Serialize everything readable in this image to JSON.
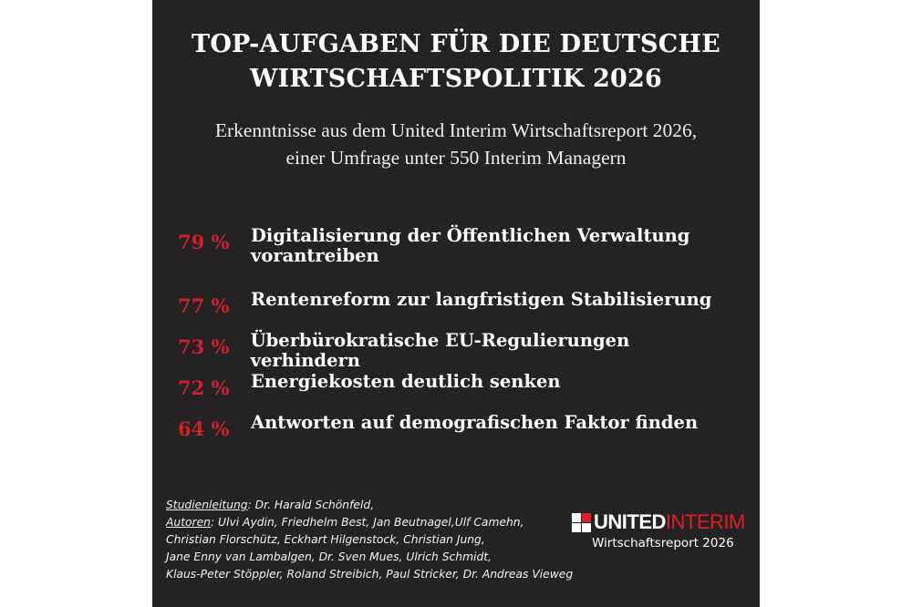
{
  "title": {
    "line1": "TOP-AUFGABEN FÜR DIE DEUTSCHE",
    "line2": "WIRTSCHAFTSPOLITIK 2026"
  },
  "subtitle": {
    "line1": "Erkenntnisse aus dem United Interim Wirtschaftsreport 2026,",
    "line2": "einer Umfrage unter 550 Interim Managern"
  },
  "items": [
    {
      "percent": "79 %",
      "label_line1": "Digitalisierung der Öffentlichen Verwaltung",
      "label_line2": "vorantreiben"
    },
    {
      "percent": "77 %",
      "label_line1": "Rentenreform zur langfristigen Stabilisierung"
    },
    {
      "percent": "73 %",
      "label_line1": "Überbürokratische EU-Regulierungen verhindern"
    },
    {
      "percent": "72 %",
      "label_line1": "Energiekosten deutlich senken"
    },
    {
      "percent": "64 %",
      "label_line1": "Antworten auf demografischen Faktor finden"
    }
  ],
  "credits": {
    "lead_label": "Studienleitung",
    "lead_value": ": Dr. Harald Schönfeld,",
    "authors_label": "Autoren",
    "authors_line1": ": Ulvi Aydin, Friedhelm Best, Jan Beutnagel,Ulf Camehn,",
    "authors_line2": "Christian Florschütz, Eckhart Hilgenstock, Christian Jung,",
    "authors_line3": "Jane Enny van Lambalgen,  Dr. Sven Mues, Ulrich Schmidt,",
    "authors_line4": "Klaus-Peter Stöppler, Roland Streibich, Paul Stricker, Dr. Andreas Vieweg"
  },
  "logo": {
    "brand_white": "UNITED",
    "brand_red": "INTERIM",
    "report": "Wirtschaftsreport 2026"
  },
  "colors": {
    "background": "#242222",
    "accent": "#d0202a"
  }
}
